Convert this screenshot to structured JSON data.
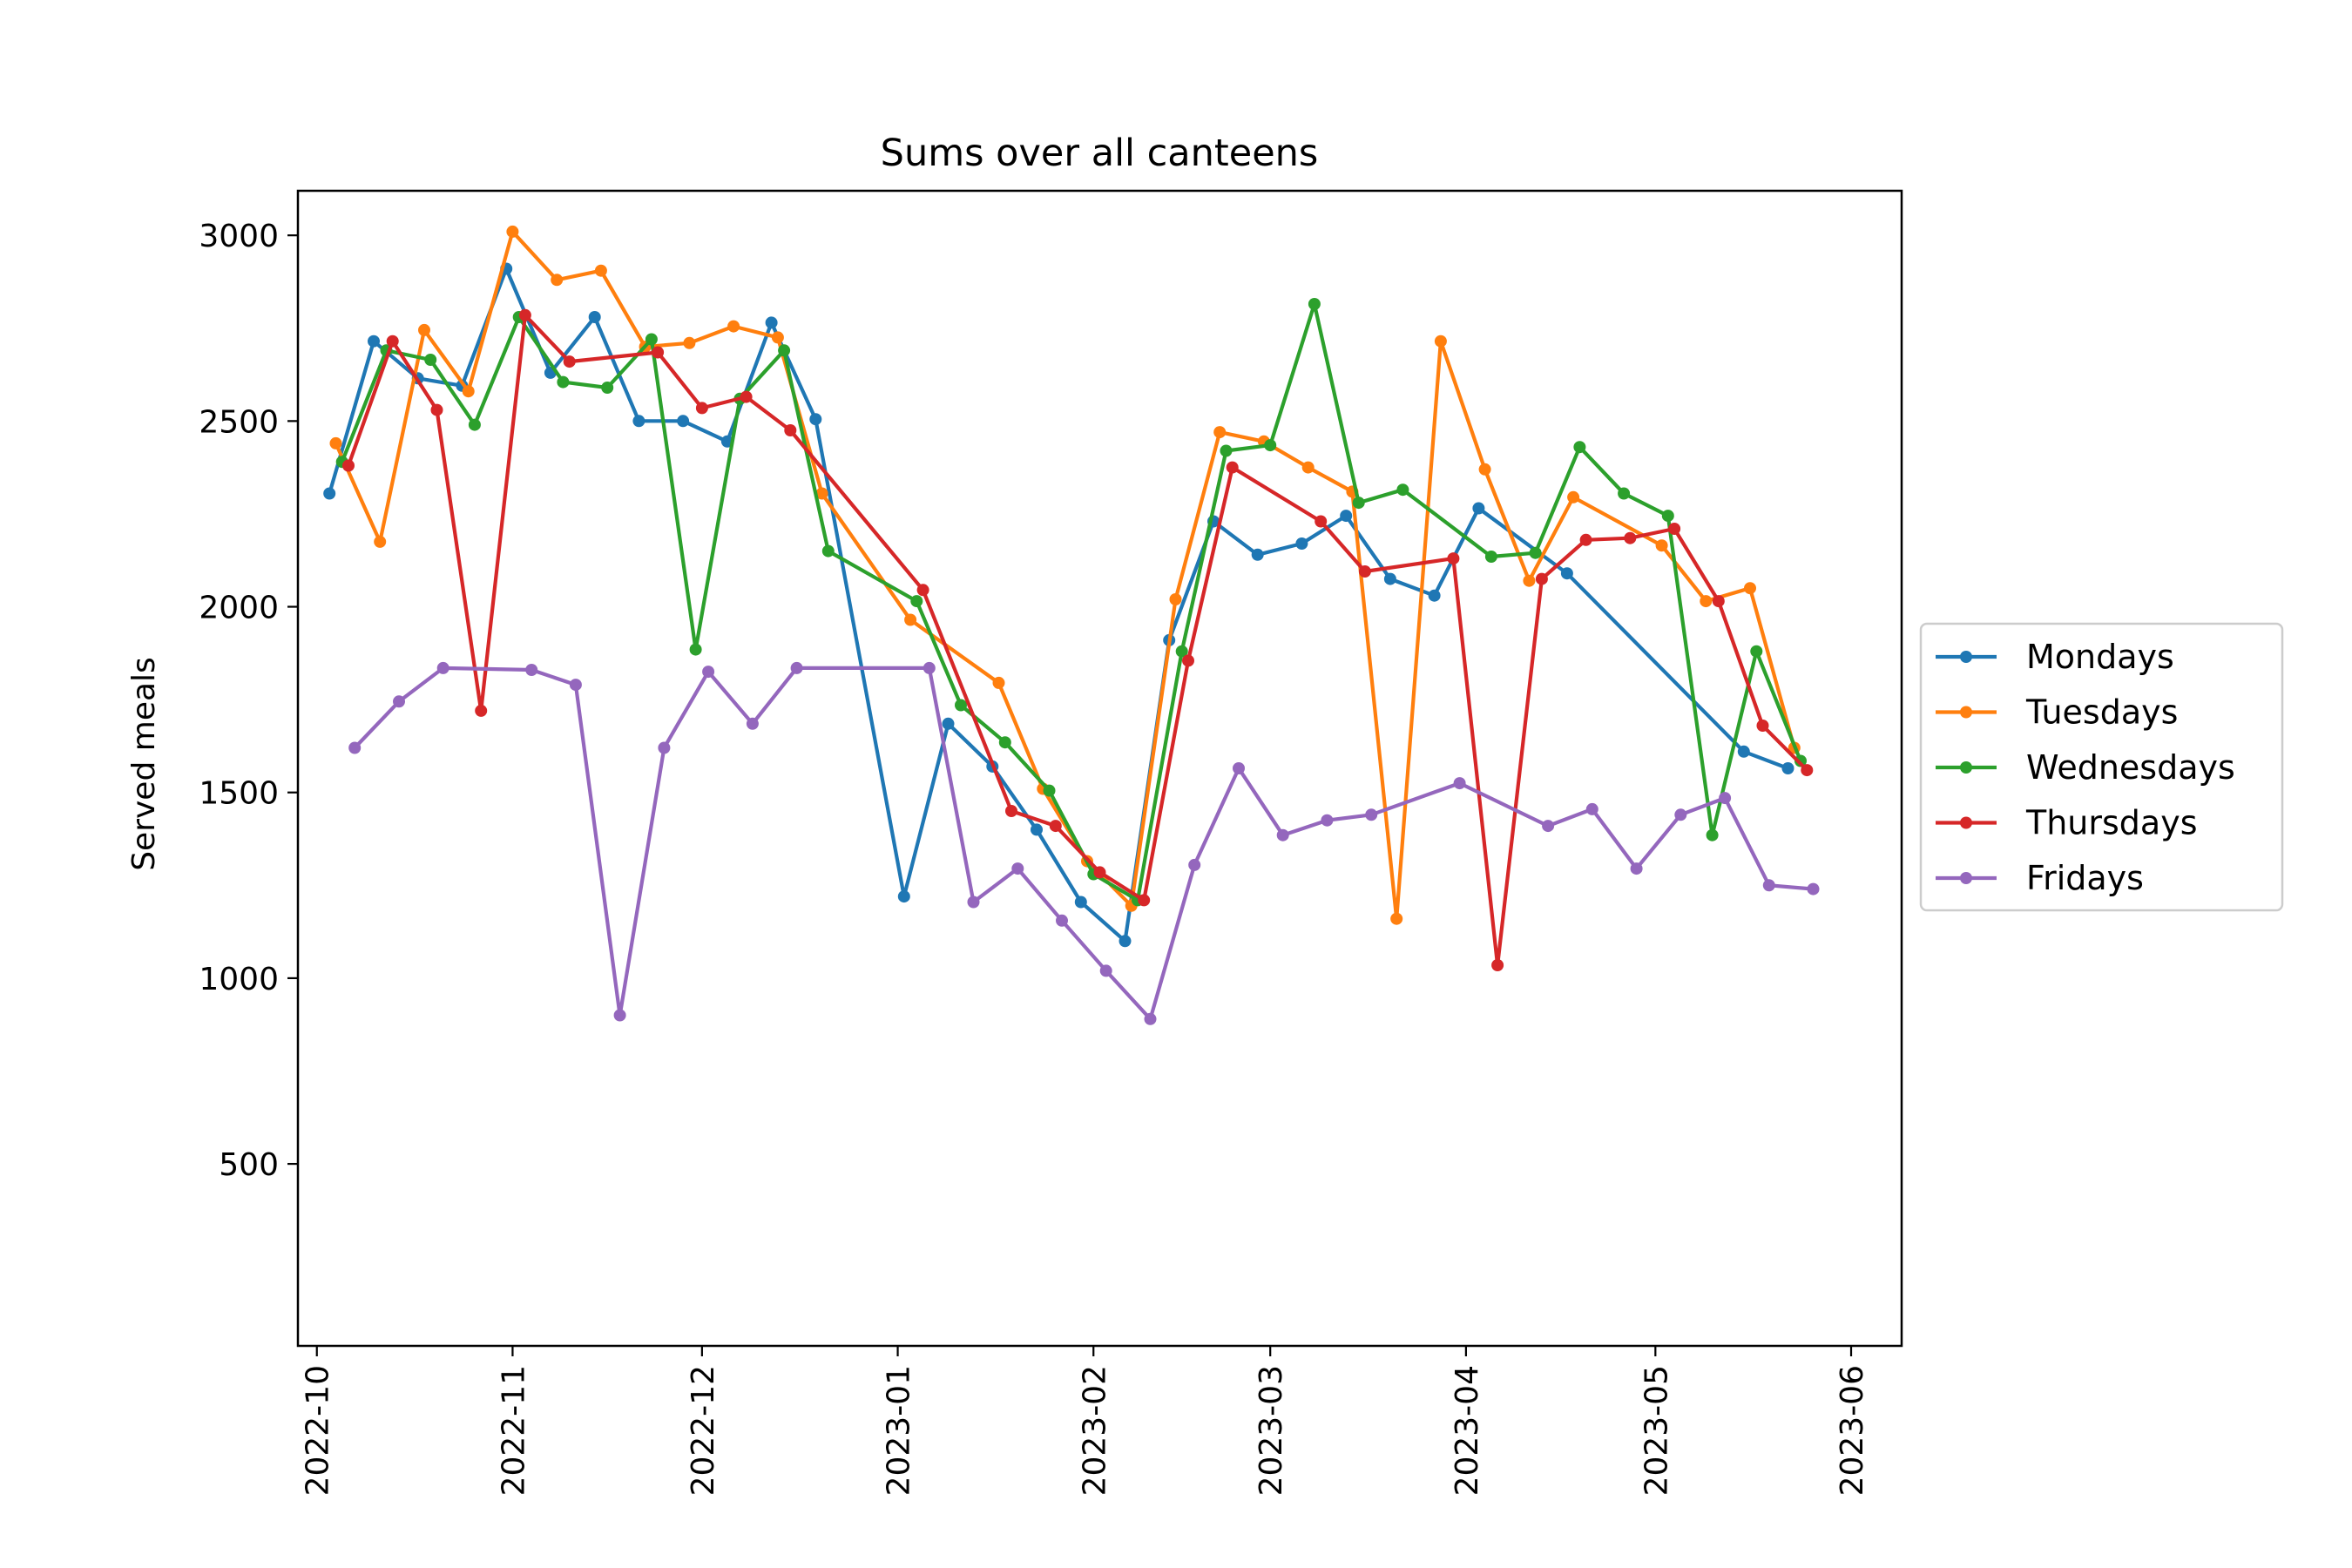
{
  "chart_data": {
    "type": "line",
    "title": "Sums over all canteens",
    "xlabel": "",
    "ylabel": "Served meals",
    "xlim": [
      "2022-09-28",
      "2023-06-09"
    ],
    "ylim": [
      10,
      3120
    ],
    "grid": false,
    "legend": "center-right-outside",
    "x_ticks": [
      "2022-10",
      "2022-11",
      "2022-12",
      "2023-01",
      "2023-02",
      "2023-03",
      "2023-04",
      "2023-05",
      "2023-06"
    ],
    "y_ticks": [
      500,
      1000,
      1500,
      2000,
      2500,
      3000
    ],
    "series": [
      {
        "name": "Mondays",
        "color": "#1f77b4",
        "points": [
          [
            "2022-10-03",
            2305
          ],
          [
            "2022-10-10",
            2715
          ],
          [
            "2022-10-17",
            2615
          ],
          [
            "2022-10-24",
            2595
          ],
          [
            "2022-10-31",
            2910
          ],
          [
            "2022-11-07",
            2630
          ],
          [
            "2022-11-14",
            2780
          ],
          [
            "2022-11-21",
            2500
          ],
          [
            "2022-11-28",
            2500
          ],
          [
            "2022-12-05",
            2445
          ],
          [
            "2022-12-12",
            2765
          ],
          [
            "2022-12-19",
            2505
          ],
          [
            "2023-01-02",
            1220
          ],
          [
            "2023-01-09",
            1685
          ],
          [
            "2023-01-16",
            1570
          ],
          [
            "2023-01-23",
            1400
          ],
          [
            "2023-01-30",
            1205
          ],
          [
            "2023-02-06",
            1100
          ],
          [
            "2023-02-13",
            1910
          ],
          [
            "2023-02-20",
            2230
          ],
          [
            "2023-02-27",
            2140
          ],
          [
            "2023-03-06",
            2170
          ],
          [
            "2023-03-13",
            2245
          ],
          [
            "2023-03-20",
            2075
          ],
          [
            "2023-03-27",
            2030
          ],
          [
            "2023-04-03",
            2265
          ],
          [
            "2023-04-17",
            2090
          ],
          [
            "2023-05-15",
            1610
          ],
          [
            "2023-05-22",
            1565
          ]
        ]
      },
      {
        "name": "Tuesdays",
        "color": "#ff7f0e",
        "points": [
          [
            "2022-10-04",
            2440
          ],
          [
            "2022-10-11",
            2175
          ],
          [
            "2022-10-18",
            2745
          ],
          [
            "2022-10-25",
            2580
          ],
          [
            "2022-11-01",
            3010
          ],
          [
            "2022-11-08",
            2880
          ],
          [
            "2022-11-15",
            2905
          ],
          [
            "2022-11-22",
            2700
          ],
          [
            "2022-11-29",
            2710
          ],
          [
            "2022-12-06",
            2755
          ],
          [
            "2022-12-13",
            2725
          ],
          [
            "2022-12-20",
            2305
          ],
          [
            "2023-01-03",
            1965
          ],
          [
            "2023-01-17",
            1795
          ],
          [
            "2023-01-24",
            1510
          ],
          [
            "2023-01-31",
            1315
          ],
          [
            "2023-02-07",
            1195
          ],
          [
            "2023-02-14",
            2020
          ],
          [
            "2023-02-21",
            2470
          ],
          [
            "2023-02-28",
            2445
          ],
          [
            "2023-03-07",
            2375
          ],
          [
            "2023-03-14",
            2310
          ],
          [
            "2023-03-21",
            1160
          ],
          [
            "2023-03-28",
            2715
          ],
          [
            "2023-04-04",
            2370
          ],
          [
            "2023-04-11",
            2070
          ],
          [
            "2023-04-18",
            2295
          ],
          [
            "2023-05-02",
            2165
          ],
          [
            "2023-05-09",
            2015
          ],
          [
            "2023-05-16",
            2050
          ],
          [
            "2023-05-23",
            1620
          ]
        ]
      },
      {
        "name": "Wednesdays",
        "color": "#2ca02c",
        "points": [
          [
            "2022-10-05",
            2390
          ],
          [
            "2022-10-12",
            2690
          ],
          [
            "2022-10-19",
            2665
          ],
          [
            "2022-10-26",
            2490
          ],
          [
            "2022-11-02",
            2780
          ],
          [
            "2022-11-09",
            2605
          ],
          [
            "2022-11-16",
            2590
          ],
          [
            "2022-11-23",
            2720
          ],
          [
            "2022-11-30",
            1885
          ],
          [
            "2022-12-07",
            2560
          ],
          [
            "2022-12-14",
            2690
          ],
          [
            "2022-12-21",
            2150
          ],
          [
            "2023-01-04",
            2015
          ],
          [
            "2023-01-11",
            1735
          ],
          [
            "2023-01-18",
            1635
          ],
          [
            "2023-01-25",
            1505
          ],
          [
            "2023-02-01",
            1280
          ],
          [
            "2023-02-08",
            1210
          ],
          [
            "2023-02-15",
            1880
          ],
          [
            "2023-02-22",
            2420
          ],
          [
            "2023-03-01",
            2435
          ],
          [
            "2023-03-08",
            2815
          ],
          [
            "2023-03-15",
            2280
          ],
          [
            "2023-03-22",
            2315
          ],
          [
            "2023-04-05",
            2135
          ],
          [
            "2023-04-12",
            2145
          ],
          [
            "2023-04-19",
            2430
          ],
          [
            "2023-04-26",
            2305
          ],
          [
            "2023-05-03",
            2245
          ],
          [
            "2023-05-10",
            1385
          ],
          [
            "2023-05-17",
            1880
          ],
          [
            "2023-05-24",
            1585
          ]
        ]
      },
      {
        "name": "Thursdays",
        "color": "#d62728",
        "points": [
          [
            "2022-10-06",
            2380
          ],
          [
            "2022-10-13",
            2715
          ],
          [
            "2022-10-20",
            2530
          ],
          [
            "2022-10-27",
            1720
          ],
          [
            "2022-11-03",
            2785
          ],
          [
            "2022-11-10",
            2660
          ],
          [
            "2022-11-24",
            2685
          ],
          [
            "2022-12-01",
            2535
          ],
          [
            "2022-12-08",
            2565
          ],
          [
            "2022-12-15",
            2475
          ],
          [
            "2023-01-05",
            2045
          ],
          [
            "2023-01-19",
            1450
          ],
          [
            "2023-01-26",
            1410
          ],
          [
            "2023-02-02",
            1285
          ],
          [
            "2023-02-09",
            1210
          ],
          [
            "2023-02-16",
            1855
          ],
          [
            "2023-02-23",
            2375
          ],
          [
            "2023-03-09",
            2230
          ],
          [
            "2023-03-16",
            2095
          ],
          [
            "2023-03-30",
            2130
          ],
          [
            "2023-04-06",
            1035
          ],
          [
            "2023-04-13",
            2075
          ],
          [
            "2023-04-20",
            2180
          ],
          [
            "2023-04-27",
            2185
          ],
          [
            "2023-05-04",
            2210
          ],
          [
            "2023-05-11",
            2015
          ],
          [
            "2023-05-18",
            1680
          ],
          [
            "2023-05-25",
            1560
          ]
        ]
      },
      {
        "name": "Fridays",
        "color": "#9467bd",
        "points": [
          [
            "2022-10-07",
            1620
          ],
          [
            "2022-10-14",
            1745
          ],
          [
            "2022-10-21",
            1835
          ],
          [
            "2022-11-04",
            1830
          ],
          [
            "2022-11-11",
            1790
          ],
          [
            "2022-11-18",
            900
          ],
          [
            "2022-11-25",
            1620
          ],
          [
            "2022-12-02",
            1825
          ],
          [
            "2022-12-09",
            1685
          ],
          [
            "2022-12-16",
            1835
          ],
          [
            "2023-01-06",
            1835
          ],
          [
            "2023-01-13",
            1205
          ],
          [
            "2023-01-20",
            1295
          ],
          [
            "2023-01-27",
            1155
          ],
          [
            "2023-02-03",
            1020
          ],
          [
            "2023-02-10",
            890
          ],
          [
            "2023-02-17",
            1305
          ],
          [
            "2023-02-24",
            1565
          ],
          [
            "2023-03-03",
            1385
          ],
          [
            "2023-03-10",
            1425
          ],
          [
            "2023-03-17",
            1440
          ],
          [
            "2023-03-31",
            1525
          ],
          [
            "2023-04-14",
            1410
          ],
          [
            "2023-04-21",
            1455
          ],
          [
            "2023-04-28",
            1295
          ],
          [
            "2023-05-05",
            1440
          ],
          [
            "2023-05-12",
            1485
          ],
          [
            "2023-05-19",
            1250
          ],
          [
            "2023-05-26",
            1240
          ]
        ]
      }
    ]
  }
}
